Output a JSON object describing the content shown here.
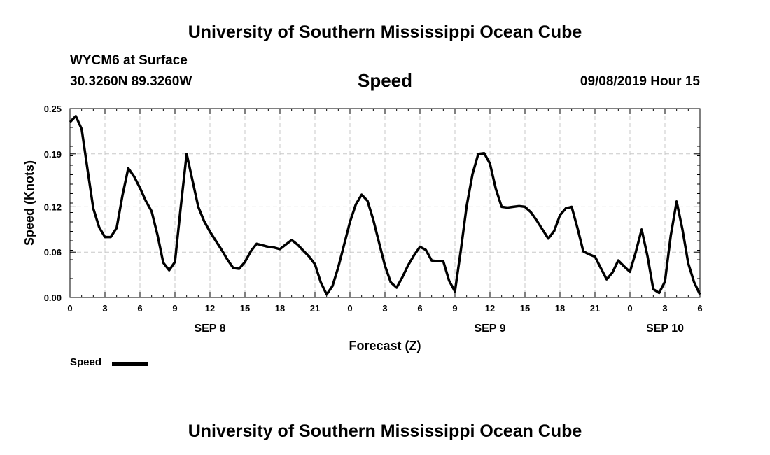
{
  "header": {
    "title_top": "University of Southern Mississippi Ocean Cube",
    "title_bottom": "University of Southern Mississippi Ocean Cube",
    "station": "WYCM6 at Surface",
    "coords": "30.3260N 89.3260W",
    "chart_title": "Speed",
    "datetime": "09/08/2019 Hour 15"
  },
  "legend": {
    "label": "Speed",
    "color": "#000000"
  },
  "colors": {
    "line": "#000000",
    "grid": "#c8c8c8",
    "axis": "#000000"
  },
  "chart_data": {
    "type": "line",
    "title": "Speed",
    "xlabel": "Forecast (Z)",
    "ylabel": "Speed (Knots)",
    "ylim": [
      0.0,
      0.25
    ],
    "xlim": [
      0,
      54
    ],
    "y_ticks": [
      0.0,
      0.06,
      0.12,
      0.19,
      0.25
    ],
    "y_tick_labels": [
      "0.00",
      "0.06",
      "0.12",
      "0.19",
      "0.25"
    ],
    "x_ticks": [
      0,
      3,
      6,
      9,
      12,
      15,
      18,
      21,
      24,
      27,
      30,
      33,
      36,
      39,
      42,
      45,
      48,
      51,
      54
    ],
    "x_tick_labels": [
      "0",
      "3",
      "6",
      "9",
      "12",
      "15",
      "18",
      "21",
      "0",
      "3",
      "6",
      "9",
      "12",
      "15",
      "18",
      "21",
      "0",
      "3",
      "6"
    ],
    "day_labels": [
      {
        "x": 12,
        "label": "SEP 8"
      },
      {
        "x": 36,
        "label": "SEP 9"
      },
      {
        "x": 51,
        "label": "SEP 10"
      }
    ],
    "grid": true,
    "series": [
      {
        "name": "Speed",
        "x": [
          0,
          0.5,
          1,
          1.5,
          2,
          2.5,
          3,
          3.5,
          4,
          4.5,
          5,
          5.5,
          6,
          6.5,
          7,
          7.5,
          8,
          8.5,
          9,
          9.5,
          10,
          10.5,
          11,
          11.5,
          12,
          12.5,
          13,
          13.5,
          14,
          14.5,
          15,
          15.5,
          16,
          16.5,
          17,
          17.5,
          18,
          18.5,
          19,
          19.5,
          20,
          20.5,
          21,
          21.5,
          22,
          22.5,
          23,
          23.5,
          24,
          24.5,
          25,
          25.5,
          26,
          26.5,
          27,
          27.5,
          28,
          28.5,
          29,
          29.5,
          30,
          30.5,
          31,
          31.5,
          32,
          32.5,
          33,
          33.5,
          34,
          34.5,
          35,
          35.5,
          36,
          36.5,
          37,
          37.5,
          38,
          38.5,
          39,
          39.5,
          40,
          40.5,
          41,
          41.5,
          42,
          42.5,
          43,
          43.5,
          44,
          44.5,
          45,
          45.5,
          46,
          46.5,
          47,
          47.5,
          48,
          48.5,
          49,
          49.5,
          50,
          50.5,
          51,
          51.5,
          52,
          52.5,
          53,
          53.5,
          54
        ],
        "values": [
          0.232,
          0.24,
          0.223,
          0.17,
          0.118,
          0.093,
          0.08,
          0.08,
          0.092,
          0.135,
          0.171,
          0.16,
          0.145,
          0.128,
          0.114,
          0.083,
          0.046,
          0.036,
          0.047,
          0.12,
          0.19,
          0.155,
          0.12,
          0.101,
          0.087,
          0.075,
          0.063,
          0.05,
          0.039,
          0.038,
          0.047,
          0.061,
          0.071,
          0.069,
          0.067,
          0.066,
          0.064,
          0.07,
          0.076,
          0.07,
          0.062,
          0.054,
          0.044,
          0.02,
          0.004,
          0.015,
          0.04,
          0.07,
          0.1,
          0.123,
          0.136,
          0.128,
          0.103,
          0.072,
          0.042,
          0.02,
          0.013,
          0.027,
          0.043,
          0.056,
          0.067,
          0.063,
          0.049,
          0.048,
          0.048,
          0.022,
          0.008,
          0.062,
          0.121,
          0.163,
          0.19,
          0.191,
          0.177,
          0.144,
          0.12,
          0.119,
          0.12,
          0.121,
          0.12,
          0.113,
          0.102,
          0.09,
          0.078,
          0.088,
          0.109,
          0.118,
          0.12,
          0.092,
          0.061,
          0.057,
          0.054,
          0.039,
          0.024,
          0.033,
          0.049,
          0.041,
          0.034,
          0.06,
          0.09,
          0.055,
          0.011,
          0.006,
          0.021,
          0.082,
          0.127,
          0.09,
          0.045,
          0.02,
          0.004
        ]
      }
    ]
  }
}
